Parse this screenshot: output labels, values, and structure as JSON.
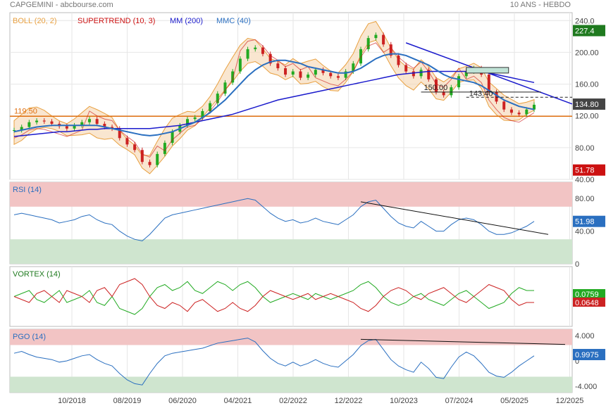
{
  "header": {
    "title": "CAPGEMINI - abcbourse.com",
    "period": "10 ANS - HEBDO"
  },
  "colors": {
    "boll": "#e8a040",
    "supertrend": "#cc1111",
    "mm200": "#1a1acc",
    "mmc40": "#2a6fc0",
    "price_up": "#22aa22",
    "price_down": "#cc2222",
    "rsi": "#2a6fc0",
    "vortex_plus": "#22aa22",
    "vortex_minus": "#cc2222",
    "pgo": "#2a6fc0",
    "horizontal": "#e07010",
    "zone_red": "#f2c4c4",
    "zone_green": "#cfe5cf"
  },
  "legend": [
    {
      "label": "BOLL (20, 2)",
      "color": "#e8a040"
    },
    {
      "label": "SUPERTREND (10, 3)",
      "color": "#cc1111"
    },
    {
      "label": "MM (200)",
      "color": "#1a1acc"
    },
    {
      "label": "MMC (40)",
      "color": "#2a6fc0"
    }
  ],
  "x_ticks": [
    "10/2018",
    "08/2019",
    "06/2020",
    "04/2021",
    "02/2022",
    "12/2022",
    "10/2023",
    "07/2024",
    "05/2025",
    "12/2025"
  ],
  "chart_data": [
    {
      "type": "line",
      "panel": "price",
      "ylim": [
        40,
        250
      ],
      "y_ticks": [
        40,
        80,
        120,
        160,
        200,
        240
      ],
      "y_tick_labels": [
        "40.00",
        "80.00",
        "120.00",
        "160.00",
        "200.00",
        "240.0"
      ],
      "x_start": "2018-01",
      "x_end": "2025-12",
      "series": [
        {
          "name": "Price",
          "values": [
            102,
            106,
            112,
            114,
            113,
            110,
            107,
            104,
            108,
            112,
            116,
            110,
            106,
            104,
            92,
            84,
            77,
            62,
            58,
            72,
            86,
            100,
            108,
            116,
            118,
            126,
            136,
            148,
            162,
            176,
            192,
            204,
            206,
            198,
            186,
            180,
            172,
            176,
            168,
            172,
            178,
            174,
            170,
            168,
            176,
            186,
            204,
            218,
            222,
            210,
            196,
            184,
            176,
            170,
            178,
            166,
            150,
            146,
            156,
            170,
            176,
            180,
            172,
            150,
            138,
            128,
            124,
            122,
            128,
            134
          ]
        },
        {
          "name": "MM (200)",
          "values": [
            94,
            95,
            96,
            97,
            98,
            99,
            100,
            100,
            101,
            102,
            103,
            103,
            104,
            104,
            104,
            104,
            104,
            104,
            104,
            105,
            106,
            107,
            108,
            110,
            112,
            114,
            116,
            118,
            120,
            122,
            125,
            128,
            131,
            134,
            137,
            140,
            142,
            144,
            146,
            148,
            150,
            152,
            154,
            156,
            158,
            160,
            162,
            164,
            166,
            168,
            170,
            172,
            173,
            174,
            175,
            176,
            176,
            176,
            176,
            176,
            176,
            176,
            176,
            174,
            172,
            170,
            168,
            166,
            164,
            162
          ]
        },
        {
          "name": "MMC (40)",
          "values": [
            100,
            102,
            104,
            106,
            107,
            108,
            108,
            108,
            108,
            108,
            108,
            108,
            106,
            104,
            102,
            100,
            98,
            96,
            95,
            96,
            98,
            100,
            104,
            108,
            112,
            118,
            124,
            132,
            140,
            150,
            160,
            170,
            178,
            184,
            188,
            190,
            190,
            188,
            186,
            182,
            180,
            178,
            176,
            174,
            174,
            176,
            180,
            186,
            192,
            196,
            198,
            198,
            196,
            192,
            188,
            184,
            178,
            172,
            168,
            166,
            164,
            162,
            158,
            152,
            146,
            140,
            136,
            132,
            130,
            128
          ]
        }
      ],
      "levels": [
        {
          "label": "119.50",
          "value": 119.5
        },
        {
          "label": "150.00",
          "value": 150
        },
        {
          "label": "143.40",
          "value": 143.4
        }
      ],
      "price_label": "134.80",
      "right_badges": [
        {
          "value": "227.4",
          "color": "#1f7a1f"
        },
        {
          "value": "134.80",
          "color": "#444"
        },
        {
          "value": "51.78",
          "color": "#cc1111"
        }
      ]
    },
    {
      "type": "line",
      "panel": "rsi",
      "name": "RSI (14)",
      "ylim": [
        0,
        100
      ],
      "y_ticks": [
        0,
        40,
        80
      ],
      "y_tick_labels": [
        "0",
        "40.00",
        "80.00"
      ],
      "bands": [
        30,
        70
      ],
      "series": [
        {
          "name": "RSI (14)",
          "values": [
            60,
            62,
            60,
            58,
            56,
            54,
            50,
            52,
            54,
            58,
            60,
            54,
            50,
            48,
            40,
            34,
            30,
            28,
            36,
            46,
            56,
            60,
            62,
            64,
            66,
            68,
            70,
            72,
            74,
            76,
            78,
            80,
            78,
            70,
            62,
            56,
            52,
            54,
            50,
            52,
            56,
            52,
            50,
            48,
            54,
            60,
            70,
            76,
            78,
            68,
            58,
            50,
            46,
            44,
            52,
            46,
            40,
            40,
            48,
            54,
            56,
            54,
            48,
            40,
            36,
            36,
            38,
            42,
            46,
            52
          ]
        }
      ],
      "trendline_from": [
        46,
        76
      ],
      "trendline_to": [
        69,
        40
      ],
      "badge": "51.98"
    },
    {
      "type": "line",
      "panel": "vortex",
      "name": "VORTEX (14)",
      "ylim": [
        0.5,
        1.5
      ],
      "series": [
        {
          "name": "VI+",
          "values": [
            1.0,
            1.05,
            1.1,
            0.95,
            0.9,
            1.0,
            1.1,
            0.9,
            0.95,
            1.0,
            1.1,
            0.9,
            0.85,
            1.0,
            0.8,
            0.75,
            0.7,
            0.8,
            1.0,
            1.15,
            1.2,
            1.1,
            1.15,
            1.25,
            1.1,
            1.05,
            1.15,
            1.25,
            1.2,
            1.1,
            1.2,
            1.25,
            1.15,
            1.0,
            0.9,
            0.95,
            1.0,
            1.05,
            1.0,
            0.95,
            1.05,
            1.0,
            0.95,
            1.0,
            1.05,
            1.1,
            1.2,
            1.25,
            1.15,
            1.0,
            0.9,
            0.85,
            0.9,
            1.0,
            1.05,
            0.95,
            0.9,
            0.85,
            0.95,
            1.05,
            1.1,
            1.0,
            0.9,
            0.8,
            0.85,
            0.9,
            1.05,
            1.15,
            1.1,
            1.1
          ]
        },
        {
          "name": "VI-",
          "values": [
            1.0,
            0.95,
            0.9,
            1.05,
            1.1,
            1.0,
            0.9,
            1.1,
            1.05,
            1.0,
            0.9,
            1.1,
            1.15,
            1.0,
            1.2,
            1.25,
            1.3,
            1.2,
            1.0,
            0.85,
            0.8,
            0.9,
            0.85,
            0.75,
            0.9,
            0.95,
            0.85,
            0.75,
            0.8,
            0.9,
            0.8,
            0.75,
            0.85,
            1.0,
            1.1,
            1.05,
            1.0,
            0.95,
            1.0,
            1.05,
            0.95,
            1.0,
            1.05,
            1.0,
            0.95,
            0.9,
            0.8,
            0.75,
            0.85,
            1.0,
            1.1,
            1.15,
            1.1,
            1.0,
            0.95,
            1.05,
            1.1,
            1.15,
            1.05,
            0.95,
            0.9,
            1.0,
            1.1,
            1.2,
            1.15,
            1.1,
            0.95,
            0.85,
            0.9,
            0.9
          ]
        }
      ],
      "badges": [
        {
          "value": "0.0759",
          "color": "#22aa22"
        },
        {
          "value": "0.0648",
          "color": "#cc2222"
        }
      ]
    },
    {
      "type": "line",
      "panel": "pgo",
      "name": "PGO (14)",
      "ylim": [
        -5,
        5
      ],
      "y_ticks": [
        -4,
        0,
        4
      ],
      "y_tick_labels": [
        "-4.000",
        "0",
        "4.000"
      ],
      "bands": [
        -2.5,
        2.5
      ],
      "series": [
        {
          "name": "PGO (14)",
          "values": [
            1.2,
            1.5,
            1.0,
            0.6,
            0.4,
            0.2,
            -0.2,
            0.0,
            0.4,
            0.8,
            1.0,
            0.2,
            -0.4,
            -0.8,
            -2.0,
            -3.0,
            -3.6,
            -3.8,
            -2.0,
            -0.4,
            0.8,
            1.2,
            1.4,
            1.6,
            1.8,
            2.0,
            2.4,
            2.8,
            3.0,
            3.2,
            3.4,
            3.6,
            3.0,
            1.6,
            0.4,
            -0.4,
            -0.8,
            -0.2,
            -0.8,
            -0.4,
            0.2,
            -0.4,
            -0.8,
            -1.0,
            0.0,
            1.0,
            2.4,
            3.2,
            3.4,
            1.8,
            0.2,
            -0.8,
            -1.4,
            -1.8,
            -0.2,
            -1.2,
            -2.6,
            -2.8,
            -1.0,
            0.6,
            1.4,
            0.8,
            -0.4,
            -1.8,
            -2.4,
            -2.6,
            -1.8,
            -0.8,
            0.0,
            0.8
          ]
        }
      ],
      "trendline_from": [
        46,
        3.4
      ],
      "trendline_to": [
        69,
        2.6
      ],
      "badge": "0.9975"
    }
  ]
}
